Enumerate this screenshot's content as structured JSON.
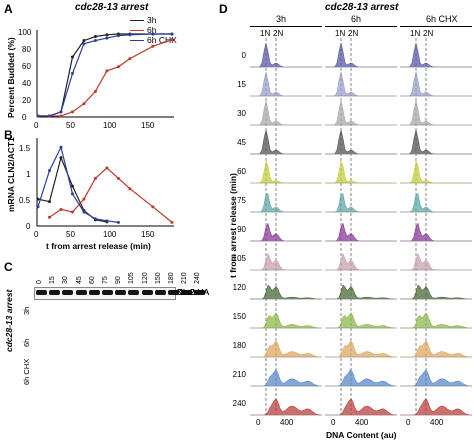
{
  "panelA": {
    "letter": "A",
    "title": "cdc28-13 arrest",
    "ylabel": "Percent Budded (%)",
    "yticks": [
      "0",
      "20",
      "40",
      "60",
      "80",
      "100"
    ],
    "xticks": [
      "0",
      "50",
      "100",
      "150"
    ],
    "legend": [
      "3h",
      "6h",
      "6h CHX"
    ]
  },
  "panelB": {
    "letter": "B",
    "ylabel": "mRNA CLN2/ACT1",
    "yticks": [
      "0",
      "0.5",
      "1",
      "1.5"
    ],
    "xticks": [
      "0",
      "50",
      "100",
      "150"
    ],
    "xlabel": "t from arrest release  (min)"
  },
  "panelC": {
    "letter": "C",
    "vlabel": "cdc28-13 arrest",
    "lanes": [
      "0",
      "15",
      "30",
      "45",
      "60",
      "75",
      "90",
      "105",
      "120",
      "150",
      "180",
      "210",
      "240"
    ],
    "rows": [
      {
        "group": "3h",
        "bands": [
          {
            "label": "Kar2"
          },
          {
            "label": "Cln2-HA"
          }
        ]
      },
      {
        "group": "6h",
        "bands": [
          {
            "label": "Kar2"
          },
          {
            "label": "Cln2-HA"
          }
        ]
      },
      {
        "group": "6h CHX",
        "bands": [
          {
            "label": "Kar2"
          },
          {
            "label": "Cln2-HA"
          }
        ]
      }
    ]
  },
  "panelD": {
    "letter": "D",
    "title": "cdc28-13 arrest",
    "columns": [
      "3h",
      "6h",
      "6h CHX"
    ],
    "nlabels": [
      "1N",
      "2N"
    ],
    "timepoints": [
      "0",
      "15",
      "30",
      "45",
      "60",
      "75",
      "90",
      "105",
      "120",
      "150",
      "180",
      "210",
      "240"
    ],
    "ylabel": "t from arrest release (min)",
    "xlabel": "DNA Content (au)",
    "xticks": [
      "0",
      "400"
    ],
    "colors": [
      "#5a5aa8",
      "#9aa0c8",
      "#aaaaaa",
      "#555555",
      "#c8cc3a",
      "#5fa8a8",
      "#8a3a9a",
      "#c8a0b0",
      "#4a6a3a",
      "#8cb84a",
      "#e0a860",
      "#5a8ac8",
      "#b84040"
    ]
  },
  "chart_data": [
    {
      "type": "line",
      "title": "cdc28-13 arrest",
      "xlabel": "",
      "ylabel": "Percent Budded (%)",
      "xlim": [
        0,
        175
      ],
      "ylim": [
        0,
        100
      ],
      "series": [
        {
          "name": "3h",
          "color": "#222222",
          "x": [
            0,
            15,
            30,
            45,
            60,
            75,
            90,
            105,
            120,
            150,
            175
          ],
          "y": [
            0,
            0,
            5,
            72,
            92,
            97,
            99,
            100,
            100,
            100,
            100
          ]
        },
        {
          "name": "6h",
          "color": "#c0392b",
          "x": [
            0,
            15,
            30,
            45,
            60,
            75,
            90,
            105,
            120,
            150,
            175
          ],
          "y": [
            0,
            0,
            0,
            5,
            15,
            30,
            55,
            60,
            70,
            85,
            93
          ]
        },
        {
          "name": "6h CHX",
          "color": "#2c3e9a",
          "x": [
            0,
            15,
            30,
            45,
            60,
            75,
            90,
            105,
            120,
            150,
            175
          ],
          "y": [
            0,
            0,
            5,
            52,
            88,
            92,
            95,
            98,
            99,
            100,
            100
          ]
        }
      ]
    },
    {
      "type": "line",
      "title": "",
      "xlabel": "t from arrest release  (min)",
      "ylabel": "mRNA CLN2/ACT1",
      "xlim": [
        0,
        175
      ],
      "ylim": [
        0,
        1.6
      ],
      "series": [
        {
          "name": "3h",
          "color": "#222222",
          "x": [
            0,
            15,
            30,
            45,
            60,
            75,
            90
          ],
          "y": [
            0.5,
            0.45,
            1.3,
            0.75,
            0.28,
            0.1,
            0.06
          ]
        },
        {
          "name": "6h",
          "color": "#c0392b",
          "x": [
            15,
            30,
            45,
            60,
            75,
            90,
            105,
            120,
            150,
            175
          ],
          "y": [
            0.15,
            0.3,
            0.25,
            0.5,
            0.9,
            1.1,
            0.9,
            0.7,
            0.35,
            0.05
          ]
        },
        {
          "name": "6h CHX",
          "color": "#2c3e9a",
          "x": [
            0,
            15,
            30,
            45,
            60,
            75,
            90,
            105
          ],
          "y": [
            0.35,
            1.05,
            1.5,
            0.6,
            0.25,
            0.12,
            0.08,
            0.05
          ]
        }
      ]
    }
  ]
}
